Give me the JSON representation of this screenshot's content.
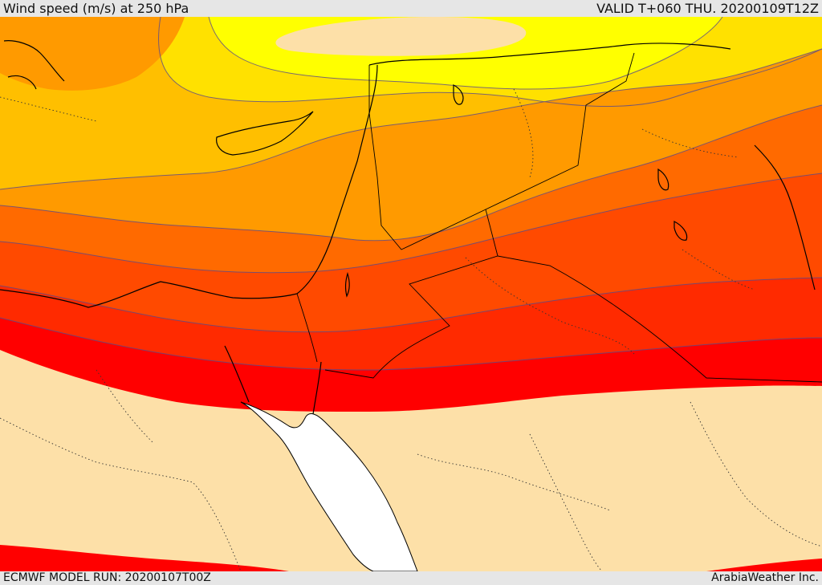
{
  "header": {
    "title": "Wind speed (m/s) at 250 hPa",
    "valid_time": "VALID T+060 THU. 20200109T12Z"
  },
  "footer": {
    "model_run": "ECMWF MODEL RUN: 20200107T00Z",
    "credit": "ArabiaWeather Inc."
  },
  "colors": {
    "band_peach": "#fde0a8",
    "band_yellow": "#ffff00",
    "band_gold": "#ffe100",
    "band_amber": "#ffbf00",
    "band_orange": "#ff9a00",
    "band_dark_orange": "#ff6a00",
    "band_red_orange": "#ff4a00",
    "band_orange_red": "#ff2a00",
    "band_red": "#ff0000",
    "sea": "#ffffff",
    "contour": "#5a4a8a",
    "coastline": "#000000"
  }
}
